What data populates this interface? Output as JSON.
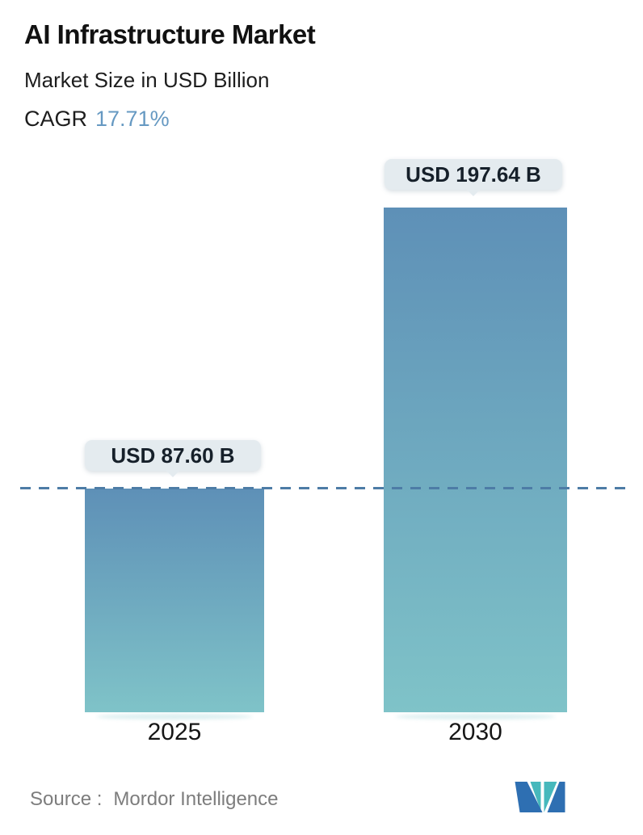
{
  "header": {
    "title": "AI Infrastructure Market",
    "subtitle": "Market Size in USD Billion",
    "cagr_label": "CAGR",
    "cagr_value": "17.71%"
  },
  "chart_data": {
    "type": "bar",
    "title": "AI Infrastructure Market",
    "subtitle": "Market Size in USD Billion",
    "cagr": "17.71%",
    "unit": "USD Billion",
    "categories": [
      "2025",
      "2030"
    ],
    "values": [
      87.6,
      197.64
    ],
    "value_labels": [
      "USD 87.60 B",
      "USD 197.64 B"
    ],
    "ylim": [
      0,
      230
    ],
    "reference_line": 87.6,
    "grid": false,
    "legend": false,
    "bar_color_top": "#5e90b7",
    "bar_color_bottom": "#7fc3c8",
    "reference_line_color": "#4d7ca6",
    "callout_bg": "#e4ebef"
  },
  "footer": {
    "source_label": "Source :",
    "source_name": "Mordor Intelligence"
  },
  "colors": {
    "accent_blue": "#6699c2",
    "text_dark": "#111111",
    "text_gray": "#7d7d7d",
    "logo_blue": "#2e6fb2",
    "logo_teal": "#46b8bc"
  }
}
